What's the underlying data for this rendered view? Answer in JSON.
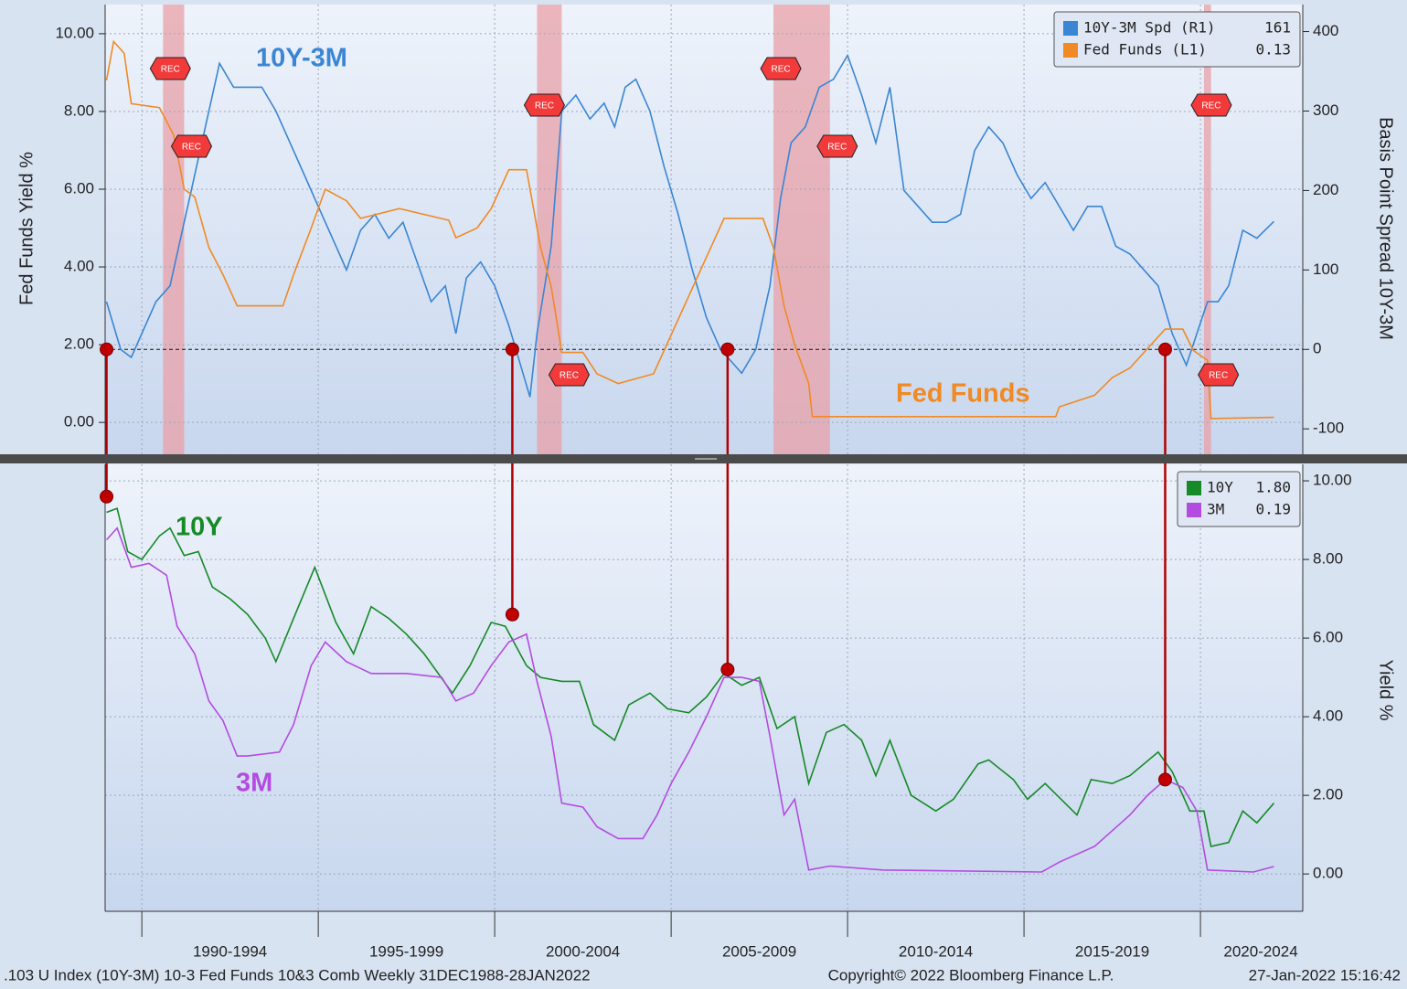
{
  "chart_data": [
    {
      "type": "line",
      "annotations": [
        "10Y-3M",
        "Fed Funds"
      ],
      "ylabel": "Fed Funds Yield %",
      "y2label": "Basis Point Spread 10Y-3M",
      "xlim": [
        1988.96,
        2022.9
      ],
      "xticks": [
        1990,
        1995,
        2000,
        2005,
        2010,
        2015,
        2020
      ],
      "ylim": [
        -0.82,
        10.75
      ],
      "yticks": [
        {
          "value": 0,
          "label": "0.00"
        },
        {
          "value": 2,
          "label": "2.00"
        },
        {
          "value": 4,
          "label": "4.00"
        },
        {
          "value": 6,
          "label": "6.00"
        },
        {
          "value": 8,
          "label": "8.00"
        },
        {
          "value": 10,
          "label": "10.00"
        }
      ],
      "y2lim": [
        -132,
        434
      ],
      "y2ticks": [
        -100,
        0,
        100,
        200,
        300,
        400
      ],
      "grid": true,
      "legend": "upper right",
      "recessions": {
        "label": "REC",
        "color": "#e8a0a8",
        "periods": [
          [
            1990.6,
            1991.2
          ],
          [
            2001.2,
            2001.9
          ],
          [
            2007.9,
            2009.5
          ],
          [
            2020.1,
            2020.3
          ]
        ]
      },
      "series": [
        {
          "name": "10Y-3M Spd (R1)",
          "legend_value": "161",
          "color": "#3a86d4",
          "axis": "y2",
          "x": [
            1989.0,
            1989.4,
            1989.7,
            1990.0,
            1990.4,
            1990.8,
            1991.0,
            1991.4,
            1991.8,
            1992.2,
            1992.6,
            1993.0,
            1993.4,
            1993.8,
            1994.2,
            1994.6,
            1995.0,
            1995.4,
            1995.8,
            1996.2,
            1996.6,
            1997.0,
            1997.4,
            1997.8,
            1998.2,
            1998.6,
            1998.9,
            1999.2,
            1999.6,
            2000.0,
            2000.4,
            2000.8,
            2001.0,
            2001.2,
            2001.6,
            2001.9,
            2002.3,
            2002.7,
            2003.1,
            2003.4,
            2003.7,
            2004.0,
            2004.4,
            2004.8,
            2005.2,
            2005.6,
            2006.0,
            2006.4,
            2006.8,
            2007.0,
            2007.4,
            2007.8,
            2008.1,
            2008.4,
            2008.8,
            2009.2,
            2009.6,
            2010.0,
            2010.4,
            2010.8,
            2011.2,
            2011.6,
            2012.0,
            2012.4,
            2012.8,
            2013.2,
            2013.6,
            2014.0,
            2014.4,
            2014.8,
            2015.2,
            2015.6,
            2016.0,
            2016.4,
            2016.8,
            2017.2,
            2017.6,
            2018.0,
            2018.4,
            2018.8,
            2019.2,
            2019.6,
            2019.9,
            2020.2,
            2020.5,
            2020.8,
            2021.2,
            2021.6,
            2022.08
          ],
          "values": [
            60,
            0,
            -10,
            20,
            60,
            80,
            120,
            200,
            280,
            360,
            330,
            330,
            330,
            300,
            260,
            220,
            180,
            140,
            100,
            150,
            170,
            140,
            160,
            110,
            60,
            80,
            20,
            90,
            110,
            80,
            30,
            -30,
            -60,
            20,
            130,
            300,
            320,
            290,
            310,
            280,
            330,
            340,
            300,
            230,
            170,
            100,
            40,
            0,
            -20,
            -30,
            0,
            80,
            190,
            260,
            280,
            330,
            340,
            370,
            320,
            260,
            330,
            200,
            180,
            160,
            160,
            170,
            250,
            280,
            260,
            220,
            190,
            210,
            180,
            150,
            180,
            180,
            130,
            120,
            100,
            80,
            20,
            -20,
            20,
            60,
            60,
            80,
            150,
            140,
            161
          ]
        },
        {
          "name": "Fed Funds (L1)",
          "legend_value": "0.13",
          "color": "#f08a24",
          "axis": "y",
          "x": [
            1989.0,
            1989.2,
            1989.5,
            1989.7,
            1990.5,
            1990.9,
            1991.2,
            1991.5,
            1991.9,
            1992.3,
            1992.7,
            1994.0,
            1994.3,
            1994.8,
            1995.2,
            1995.8,
            1996.2,
            1997.3,
            1998.7,
            1998.9,
            1999.5,
            1999.9,
            2000.4,
            2000.9,
            2001.1,
            2001.3,
            2001.6,
            2001.9,
            2002.5,
            2002.9,
            2003.5,
            2004.5,
            2005.0,
            2005.5,
            2006.0,
            2006.5,
            2007.6,
            2007.9,
            2008.2,
            2008.5,
            2008.9,
            2009.0,
            2015.9,
            2016.0,
            2017.0,
            2017.5,
            2018.0,
            2018.5,
            2019.0,
            2019.5,
            2019.8,
            2020.2,
            2020.3,
            2022.08
          ],
          "values": [
            8.8,
            9.8,
            9.5,
            8.2,
            8.1,
            7.4,
            6.0,
            5.8,
            4.5,
            3.8,
            3.0,
            3.0,
            3.8,
            5.0,
            6.0,
            5.7,
            5.25,
            5.5,
            5.2,
            4.75,
            5.0,
            5.5,
            6.5,
            6.5,
            5.5,
            4.5,
            3.5,
            1.8,
            1.8,
            1.25,
            1.0,
            1.25,
            2.25,
            3.25,
            4.25,
            5.25,
            5.25,
            4.5,
            3.0,
            2.0,
            1.0,
            0.15,
            0.15,
            0.4,
            0.7,
            1.15,
            1.4,
            1.9,
            2.4,
            2.4,
            1.85,
            1.6,
            0.1,
            0.13
          ]
        }
      ]
    },
    {
      "type": "line",
      "annotations": [
        "10Y",
        "3M"
      ],
      "ylabel": "Yield %",
      "xlim": [
        1988.96,
        2022.9
      ],
      "xticks": [
        {
          "value": 1990,
          "label": "1990-1994"
        },
        {
          "value": 1995,
          "label": "1995-1999"
        },
        {
          "value": 2000,
          "label": "2000-2004"
        },
        {
          "value": 2005,
          "label": "2005-2009"
        },
        {
          "value": 2010,
          "label": "2010-2014"
        },
        {
          "value": 2015,
          "label": "2015-2019"
        },
        {
          "value": 2020,
          "label": "2020-2024"
        }
      ],
      "ylim": [
        -0.95,
        10.42
      ],
      "yticks": [
        {
          "value": 0,
          "label": "0.00"
        },
        {
          "value": 2,
          "label": "2.00"
        },
        {
          "value": 4,
          "label": "4.00"
        },
        {
          "value": 6,
          "label": "6.00"
        },
        {
          "value": 8,
          "label": "8.00"
        },
        {
          "value": 10,
          "label": "10.00"
        }
      ],
      "grid": true,
      "legend": "upper right",
      "series": [
        {
          "name": "10Y",
          "legend_value": "1.80",
          "color": "#158a26",
          "x": [
            1989.0,
            1989.3,
            1989.6,
            1990.0,
            1990.5,
            1990.8,
            1991.2,
            1991.6,
            1992.0,
            1992.5,
            1993.0,
            1993.5,
            1993.8,
            1994.3,
            1994.9,
            1995.5,
            1996.0,
            1996.5,
            1997.0,
            1997.5,
            1998.0,
            1998.8,
            1999.3,
            1999.9,
            2000.3,
            2000.9,
            2001.3,
            2001.9,
            2002.4,
            2002.8,
            2003.4,
            2003.8,
            2004.4,
            2004.9,
            2005.5,
            2006.0,
            2006.5,
            2007.0,
            2007.5,
            2008.0,
            2008.5,
            2008.9,
            2009.4,
            2009.9,
            2010.4,
            2010.8,
            2011.2,
            2011.8,
            2012.5,
            2013.0,
            2013.7,
            2014.0,
            2014.7,
            2015.1,
            2015.6,
            2016.5,
            2016.9,
            2017.5,
            2018.0,
            2018.8,
            2019.2,
            2019.7,
            2020.1,
            2020.3,
            2020.8,
            2021.2,
            2021.6,
            2022.08
          ],
          "values": [
            9.2,
            9.3,
            8.2,
            8.0,
            8.6,
            8.8,
            8.1,
            8.2,
            7.3,
            7.0,
            6.6,
            6.0,
            5.4,
            6.5,
            7.8,
            6.4,
            5.6,
            6.8,
            6.5,
            6.1,
            5.6,
            4.6,
            5.3,
            6.4,
            6.3,
            5.3,
            5.0,
            4.9,
            4.9,
            3.8,
            3.4,
            4.3,
            4.6,
            4.2,
            4.1,
            4.5,
            5.1,
            4.8,
            5.0,
            3.7,
            4.0,
            2.3,
            3.6,
            3.8,
            3.4,
            2.5,
            3.4,
            2.0,
            1.6,
            1.9,
            2.8,
            2.9,
            2.4,
            1.9,
            2.3,
            1.5,
            2.4,
            2.3,
            2.5,
            3.1,
            2.6,
            1.6,
            1.6,
            0.7,
            0.8,
            1.6,
            1.3,
            1.8
          ]
        },
        {
          "name": "3M",
          "legend_value": "0.19",
          "color": "#b44be1",
          "x": [
            1989.0,
            1989.3,
            1989.7,
            1990.2,
            1990.7,
            1991.0,
            1991.5,
            1991.9,
            1992.3,
            1992.7,
            1993.0,
            1993.9,
            1994.3,
            1994.8,
            1995.2,
            1995.8,
            1996.5,
            1997.5,
            1998.5,
            1998.9,
            1999.4,
            1999.9,
            2000.4,
            2000.9,
            2001.2,
            2001.6,
            2001.9,
            2002.5,
            2002.9,
            2003.5,
            2004.2,
            2004.6,
            2005.0,
            2005.5,
            2006.0,
            2006.5,
            2007.0,
            2007.5,
            2007.8,
            2008.2,
            2008.5,
            2008.9,
            2009.5,
            2011.0,
            2015.5,
            2016.0,
            2017.0,
            2017.5,
            2018.0,
            2018.5,
            2019.0,
            2019.5,
            2019.9,
            2020.2,
            2021.5,
            2022.08
          ],
          "values": [
            8.5,
            8.8,
            7.8,
            7.9,
            7.6,
            6.3,
            5.6,
            4.4,
            3.9,
            3.0,
            3.0,
            3.1,
            3.8,
            5.3,
            5.9,
            5.4,
            5.1,
            5.1,
            5.0,
            4.4,
            4.6,
            5.3,
            5.9,
            6.1,
            4.9,
            3.5,
            1.8,
            1.7,
            1.2,
            0.9,
            0.9,
            1.5,
            2.3,
            3.1,
            4.0,
            5.0,
            5.0,
            4.9,
            3.5,
            1.5,
            1.9,
            0.1,
            0.2,
            0.1,
            0.05,
            0.3,
            0.7,
            1.1,
            1.5,
            2.0,
            2.4,
            2.2,
            1.6,
            0.1,
            0.05,
            0.19
          ]
        }
      ]
    }
  ],
  "inversions": [
    {
      "x": 1989.0,
      "spread": 0,
      "yield": 9.6
    },
    {
      "x": 2000.5,
      "spread": 0,
      "yield": 6.6
    },
    {
      "x": 2006.6,
      "spread": 0,
      "yield": 5.2
    },
    {
      "x": 2019.0,
      "spread": 0,
      "yield": 2.4
    }
  ],
  "footer": {
    "left": ".103 U Index (10Y-3M) 10-3 Fed Funds 10&3 Comb  Weekly 31DEC1988-28JAN2022",
    "center": "Copyright© 2022 Bloomberg Finance L.P.",
    "right": "27-Jan-2022 15:16:42"
  }
}
